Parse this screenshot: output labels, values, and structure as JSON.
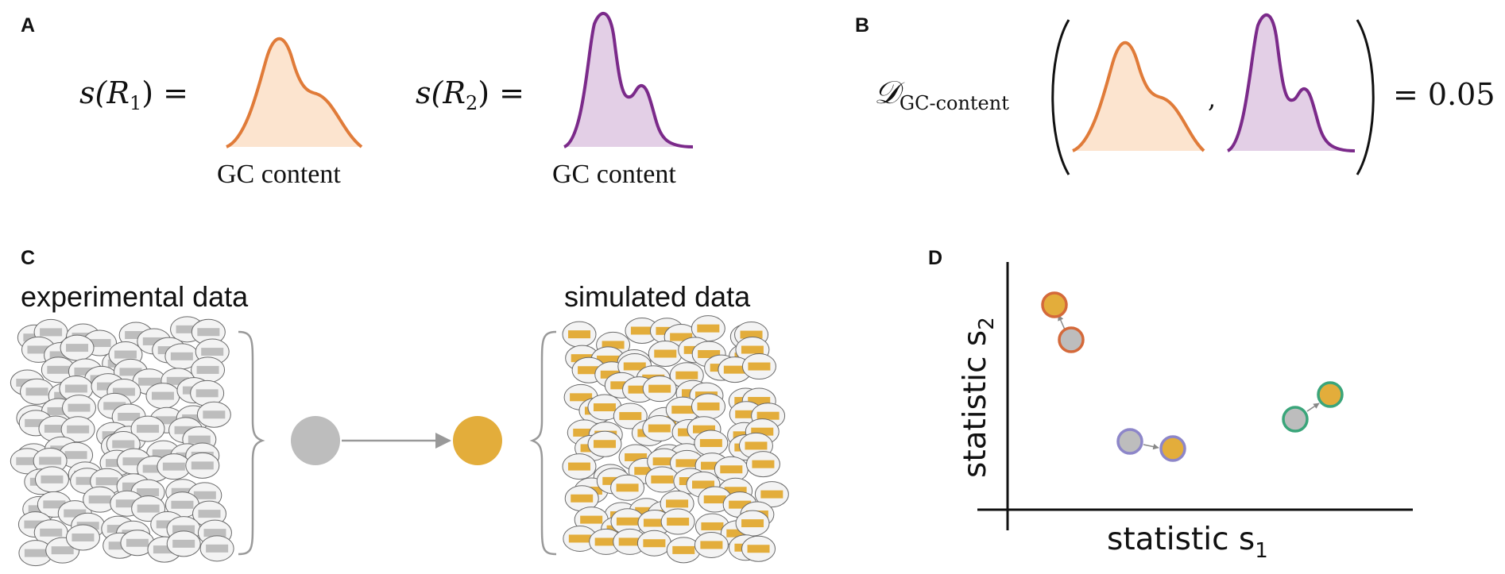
{
  "panels": {
    "a": "A",
    "b": "B",
    "c": "C",
    "d": "D"
  },
  "panel_a": {
    "eq1": {
      "fn": "s(",
      "var": "R",
      "sub": "1",
      "close": ") ="
    },
    "eq2": {
      "fn": "s(",
      "var": "R",
      "sub": "2",
      "close": ") ="
    },
    "curve_label_1": "GC content",
    "curve_label_2": "GC content"
  },
  "panel_b": {
    "distance_symbol": "𝒟",
    "distance_subscript": "GC-content",
    "separator": ",",
    "result": "= 0.05"
  },
  "panel_c": {
    "left_label": "experimental data",
    "right_label": "simulated data"
  },
  "panel_d": {
    "xlabel": "statistic s",
    "xlabel_sub": "1",
    "ylabel": "statistic s",
    "ylabel_sub": "2"
  },
  "colors": {
    "orange": "#e07b39",
    "orange_fill": "#fce4cf",
    "purple": "#7b2a8a",
    "purple_fill": "#e3cfe6",
    "gold": "#e3ad3b",
    "grey": "#bdbdbd",
    "green": "#3aa57a",
    "lavender": "#8d86c9",
    "rust": "#d4693a"
  },
  "icons": [
    "gray-read-ellipse-icon",
    "gold-read-ellipse-icon",
    "curly-brace-icon",
    "arrow-icon"
  ]
}
